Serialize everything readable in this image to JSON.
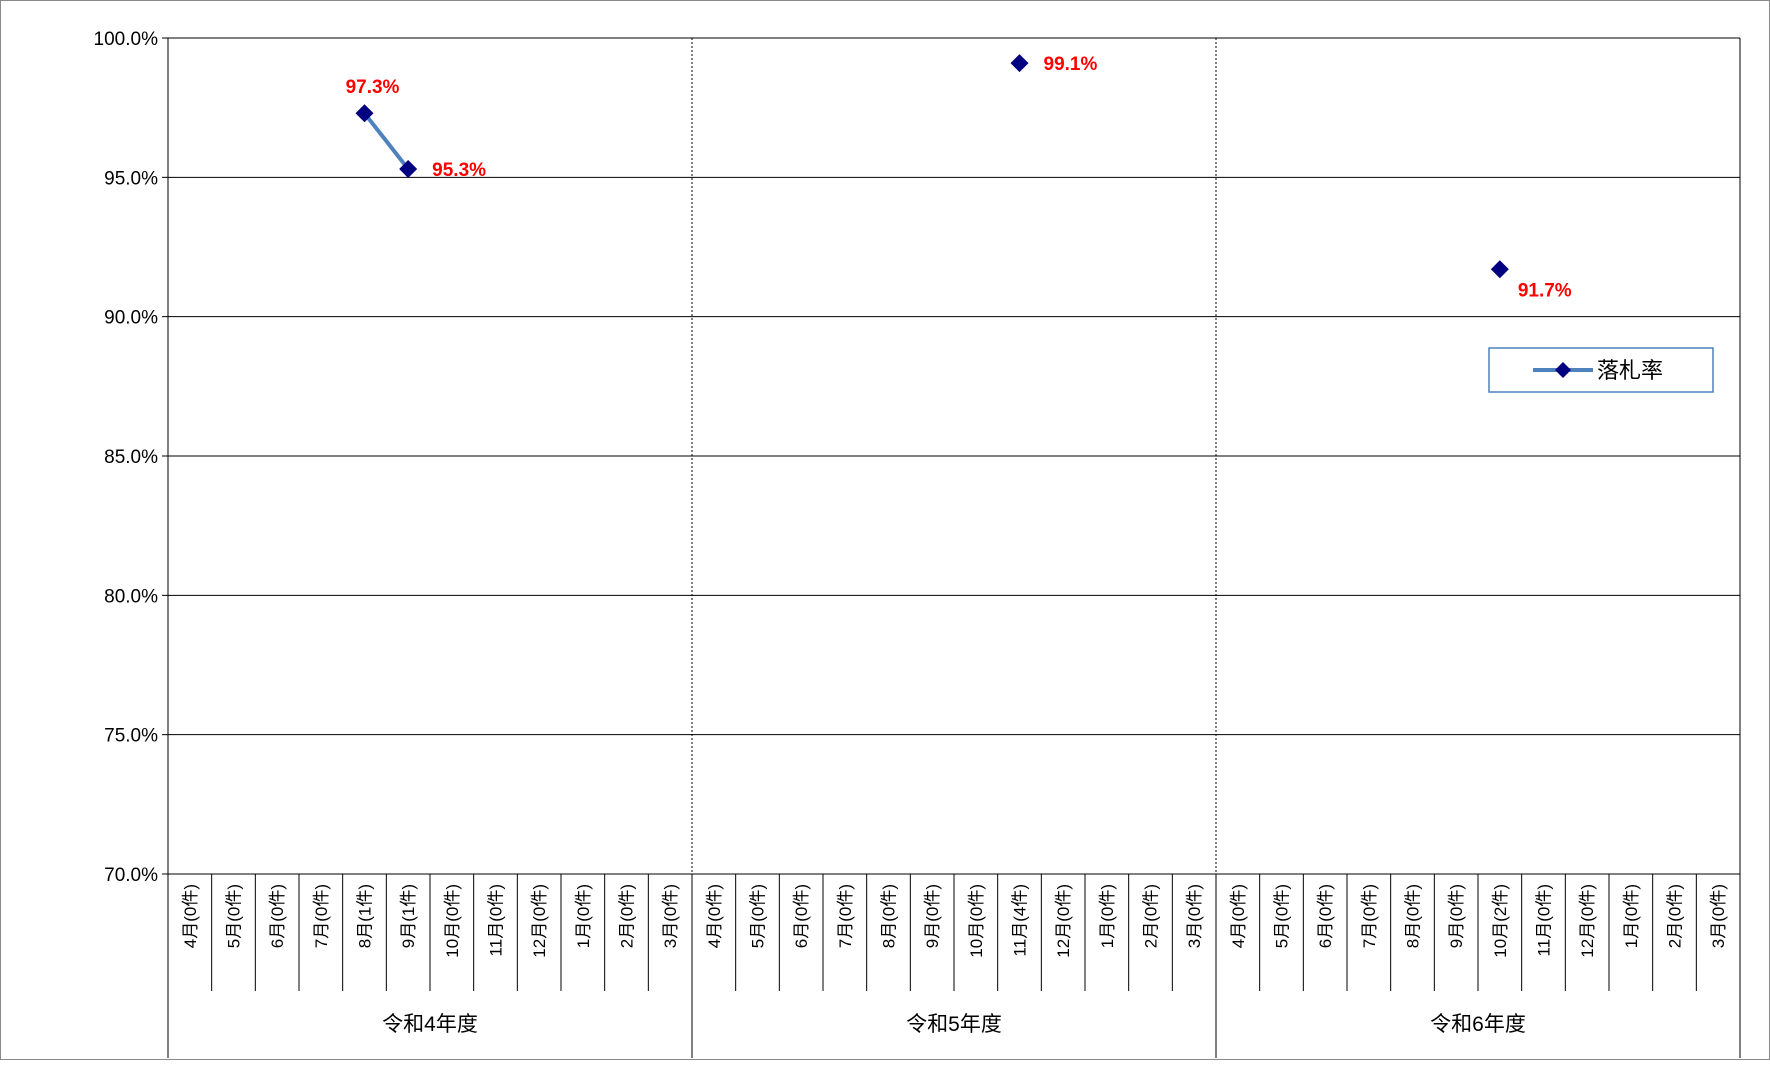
{
  "chart_data": {
    "type": "line",
    "ylim": [
      70,
      100
    ],
    "y_tick_labels": [
      "100.0%",
      "95.0%",
      "90.0%",
      "85.0%",
      "80.0%",
      "75.0%",
      "70.0%"
    ],
    "y_ticks": [
      100,
      95,
      90,
      85,
      80,
      75,
      70
    ],
    "groups": [
      {
        "label": "令和4年度",
        "categories": [
          "4月(0件)",
          "5月(0件)",
          "6月(0件)",
          "7月(0件)",
          "8月(1件)",
          "9月(1件)",
          "10月(0件)",
          "11月(0件)",
          "12月(0件)",
          "1月(0件)",
          "2月(0件)",
          "3月(0件)"
        ]
      },
      {
        "label": "令和5年度",
        "categories": [
          "4月(0件)",
          "5月(0件)",
          "6月(0件)",
          "7月(0件)",
          "8月(0件)",
          "9月(0件)",
          "10月(0件)",
          "11月(4件)",
          "12月(0件)",
          "1月(0件)",
          "2月(0件)",
          "3月(0件)"
        ]
      },
      {
        "label": "令和6年度",
        "categories": [
          "4月(0件)",
          "5月(0件)",
          "6月(0件)",
          "7月(0件)",
          "8月(0件)",
          "9月(0件)",
          "10月(2件)",
          "11月(0件)",
          "12月(0件)",
          "1月(0件)",
          "2月(0件)",
          "3月(0件)"
        ]
      }
    ],
    "series": [
      {
        "name": "落札率",
        "color": "#4f81bd",
        "marker_color": "#000080",
        "points": [
          {
            "group": 0,
            "index": 4,
            "value": 97.3,
            "label": "97.3%"
          },
          {
            "group": 0,
            "index": 5,
            "value": 95.3,
            "label": "95.3%"
          },
          {
            "group": 1,
            "index": 7,
            "value": 99.1,
            "label": "99.1%"
          },
          {
            "group": 2,
            "index": 6,
            "value": 91.7,
            "label": "91.7%"
          }
        ]
      }
    ],
    "grid": true,
    "legend_position": "right",
    "data_label_color": "#ff0000"
  }
}
